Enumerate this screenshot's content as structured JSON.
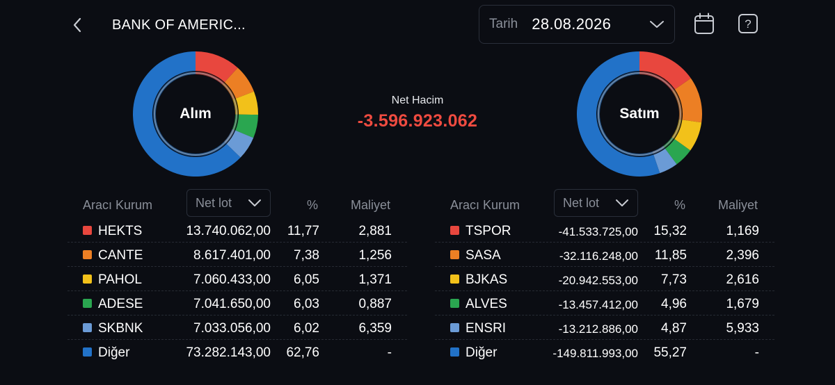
{
  "header": {
    "title": "BANK OF AMERIC...",
    "date_label": "Tarih",
    "date_value": "28.08.2026"
  },
  "buy": {
    "label": "Alım",
    "rows": [
      {
        "code": "HEKTS",
        "lot": "13.740.062,00",
        "pct": "11,77",
        "cost": "2,881",
        "color": "#e8473e",
        "share": 11.77
      },
      {
        "code": "CANTE",
        "lot": "8.617.401,00",
        "pct": "7,38",
        "cost": "1,256",
        "color": "#ec7f24",
        "share": 7.38
      },
      {
        "code": "PAHOL",
        "lot": "7.060.433,00",
        "pct": "6,05",
        "cost": "1,371",
        "color": "#f2c11a",
        "share": 6.05
      },
      {
        "code": "ADESE",
        "lot": "7.041.650,00",
        "pct": "6,03",
        "cost": "0,887",
        "color": "#2aa650",
        "share": 6.03
      },
      {
        "code": "SKBNK",
        "lot": "7.033.056,00",
        "pct": "6,02",
        "cost": "6,359",
        "color": "#6b9bd6",
        "share": 6.02
      },
      {
        "code": "Diğer",
        "lot": "73.282.143,00",
        "pct": "62,76",
        "cost": "-",
        "color": "#2272c8",
        "share": 62.76
      }
    ]
  },
  "sell": {
    "label": "Satım",
    "rows": [
      {
        "code": "TSPOR",
        "lot": "-41.533.725,00",
        "pct": "15,32",
        "cost": "1,169",
        "color": "#e8473e",
        "share": 15.32
      },
      {
        "code": "SASA",
        "lot": "-32.116.248,00",
        "pct": "11,85",
        "cost": "2,396",
        "color": "#ec7f24",
        "share": 11.85
      },
      {
        "code": "BJKAS",
        "lot": "-20.942.553,00",
        "pct": "7,73",
        "cost": "2,616",
        "color": "#f2c11a",
        "share": 7.73
      },
      {
        "code": "ALVES",
        "lot": "-13.457.412,00",
        "pct": "4,96",
        "cost": "1,679",
        "color": "#2aa650",
        "share": 4.96
      },
      {
        "code": "ENSRI",
        "lot": "-13.212.886,00",
        "pct": "4,87",
        "cost": "5,933",
        "color": "#6b9bd6",
        "share": 4.87
      },
      {
        "code": "Diğer",
        "lot": "-149.811.993,00",
        "pct": "55,27",
        "cost": "-",
        "color": "#2272c8",
        "share": 55.27
      }
    ]
  },
  "net": {
    "label": "Net Hacim",
    "value": "-3.596.923.062",
    "color": "#ef4b40"
  },
  "table_headers": {
    "broker": "Aracı Kurum",
    "netlot": "Net lot",
    "pct": "%",
    "cost": "Maliyet"
  },
  "icons": [
    "back-chevron-icon",
    "chevron-down-icon",
    "calendar-icon",
    "help-icon"
  ]
}
